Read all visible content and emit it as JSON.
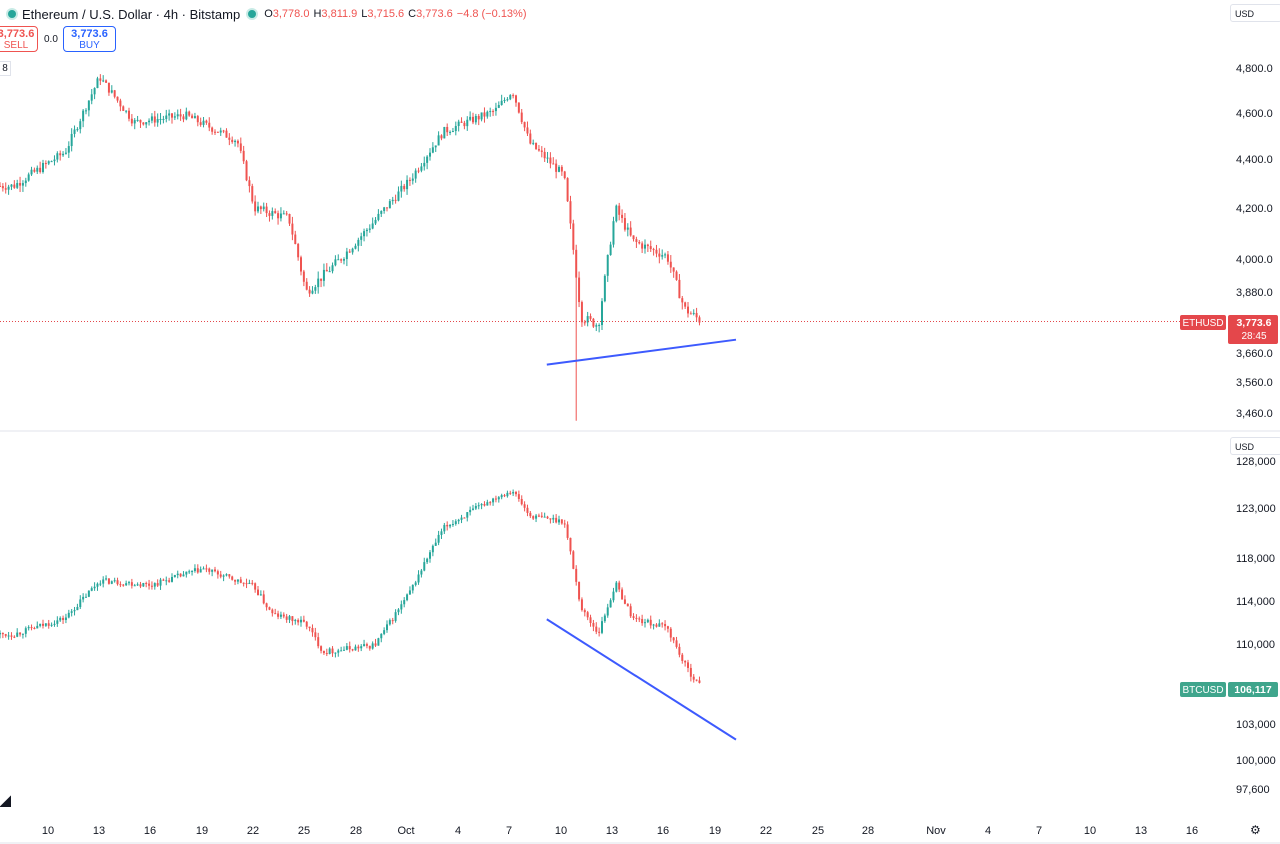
{
  "header": {
    "symbol": "Ethereum / U.S. Dollar · 4h · Bitstamp",
    "o_label": "O",
    "o": "3,778.0",
    "h_label": "H",
    "h": "3,811.9",
    "l_label": "L",
    "l": "3,715.6",
    "c_label": "C",
    "c": "3,773.6",
    "change": "−4.8 (−0.13%)",
    "sell_price": "3,773.6",
    "sell_label": "SELL",
    "spread": "0.0",
    "buy_price": "3,773.6",
    "buy_label": "BUY",
    "indicator_count": "8",
    "status_color": "#26a69a"
  },
  "currency_top": "USD",
  "currency_bottom": "USD",
  "colors": {
    "up": "#26a69a",
    "down": "#ef5350",
    "trendline": "#3d5afe",
    "eth_tag": "#e4474b",
    "btc_tag": "#3fa58c"
  },
  "icons": {
    "logo": "tradingview-logo-icon",
    "settings": "gear-icon"
  },
  "chart_data": [
    {
      "type": "candlestick",
      "symbol": "ETHUSD",
      "last_price": "3,773.6",
      "countdown": "28:45",
      "y_ticks": [
        "4,800.0",
        "4,600.0",
        "4,400.0",
        "4,200.0",
        "4,000.0",
        "3,880.0",
        "3,660.0",
        "3,560.0",
        "3,460.0"
      ],
      "key_points": [
        {
          "date": "Sep 8",
          "close": 4290
        },
        {
          "date": "Sep 11",
          "close": 4430
        },
        {
          "date": "Sep 13",
          "close": 4760
        },
        {
          "date": "Sep 15",
          "close": 4560
        },
        {
          "date": "Sep 18",
          "close": 4590
        },
        {
          "date": "Sep 21",
          "close": 4480
        },
        {
          "date": "Sep 22",
          "close": 4200
        },
        {
          "date": "Sep 24",
          "close": 4160
        },
        {
          "date": "Sep 25",
          "close": 3880
        },
        {
          "date": "Sep 27",
          "close": 4000
        },
        {
          "date": "Sep 29",
          "close": 4150
        },
        {
          "date": "Oct 1",
          "close": 4310
        },
        {
          "date": "Oct 3",
          "close": 4520
        },
        {
          "date": "Oct 6",
          "close": 4610
        },
        {
          "date": "Oct 7",
          "close": 4700
        },
        {
          "date": "Oct 8",
          "close": 4470
        },
        {
          "date": "Oct 10",
          "close": 4330
        },
        {
          "date": "Oct 11",
          "close": 3790
        },
        {
          "date": "Oct 12",
          "close": 3760
        },
        {
          "date": "Oct 13",
          "close": 4200
        },
        {
          "date": "Oct 14",
          "close": 4070
        },
        {
          "date": "Oct 16",
          "close": 4010
        },
        {
          "date": "Oct 17",
          "close": 3820
        },
        {
          "date": "Oct 18",
          "close": 3773.6
        }
      ],
      "trendline": {
        "from": {
          "date": "Oct 9",
          "price": 3620
        },
        "to": {
          "date": "Oct 20",
          "price": 3708
        }
      }
    },
    {
      "type": "candlestick",
      "symbol": "BTCUSD",
      "last_price": "106,117",
      "y_ticks": [
        "128,000",
        "123,000",
        "118,000",
        "114,000",
        "110,000",
        "103,000",
        "100,000",
        "97,600"
      ],
      "key_points": [
        {
          "date": "Sep 8",
          "close": 110900
        },
        {
          "date": "Sep 11",
          "close": 112400
        },
        {
          "date": "Sep 13",
          "close": 115900
        },
        {
          "date": "Sep 16",
          "close": 115500
        },
        {
          "date": "Sep 19",
          "close": 117000
        },
        {
          "date": "Sep 22",
          "close": 115300
        },
        {
          "date": "Sep 23",
          "close": 112800
        },
        {
          "date": "Sep 25",
          "close": 111900
        },
        {
          "date": "Sep 26",
          "close": 109300
        },
        {
          "date": "Sep 29",
          "close": 109900
        },
        {
          "date": "Oct 1",
          "close": 114700
        },
        {
          "date": "Oct 3",
          "close": 121000
        },
        {
          "date": "Oct 6",
          "close": 124100
        },
        {
          "date": "Oct 7",
          "close": 124900
        },
        {
          "date": "Oct 8",
          "close": 122200
        },
        {
          "date": "Oct 10",
          "close": 121700
        },
        {
          "date": "Oct 11",
          "close": 113300
        },
        {
          "date": "Oct 12",
          "close": 111000
        },
        {
          "date": "Oct 13",
          "close": 115600
        },
        {
          "date": "Oct 14",
          "close": 112400
        },
        {
          "date": "Oct 16",
          "close": 111500
        },
        {
          "date": "Oct 17",
          "close": 108200
        },
        {
          "date": "Oct 18",
          "close": 106117
        }
      ],
      "trendline": {
        "from": {
          "date": "Oct 9",
          "price": 112300
        },
        "to": {
          "date": "Oct 20",
          "price": 101700
        }
      }
    }
  ],
  "x_ticks": [
    "10",
    "13",
    "16",
    "19",
    "22",
    "25",
    "28",
    "Oct",
    "4",
    "7",
    "10",
    "13",
    "16",
    "19",
    "22",
    "25",
    "28",
    "Nov",
    "4",
    "7",
    "10",
    "13",
    "16"
  ]
}
